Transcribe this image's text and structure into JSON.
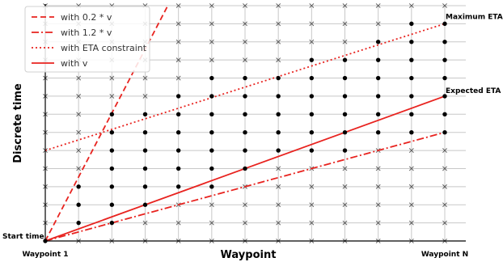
{
  "chart_data": {
    "type": "scatter",
    "title": "",
    "xlabel": "Waypoint",
    "ylabel": "Discrete time",
    "x_tick_labels": [
      {
        "x": 0,
        "label": "Waypoint 1"
      },
      {
        "x": 12,
        "label": "Waypoint N"
      }
    ],
    "xlim": [
      0,
      12
    ],
    "ylim": [
      0,
      13
    ],
    "grid": true,
    "grid_x": [
      0,
      1,
      2,
      3,
      4,
      5,
      6,
      7,
      8,
      9,
      10,
      11,
      12
    ],
    "grid_y": [
      0,
      1,
      2,
      3,
      4,
      5,
      6,
      7,
      8,
      9,
      10,
      11,
      12,
      13
    ],
    "legend": {
      "placement": "top-left",
      "entries": [
        {
          "label": "with 0.2 * v",
          "style": "dashed",
          "color": "#e8231f"
        },
        {
          "label": "with 1.2 * v",
          "style": "dashdot",
          "color": "#e8231f"
        },
        {
          "label": "with ETA constraint",
          "style": "dotted",
          "color": "#e8231f"
        },
        {
          "label": "with v",
          "style": "solid",
          "color": "#e8231f"
        }
      ]
    },
    "series": [
      {
        "name": "with 0.2 * v",
        "x": [
          0,
          3.68
        ],
        "y": [
          0,
          13
        ]
      },
      {
        "name": "with 1.2 * v",
        "x": [
          0,
          12
        ],
        "y": [
          0,
          6
        ]
      },
      {
        "name": "with ETA constraint",
        "x": [
          0,
          12
        ],
        "y": [
          5,
          12
        ]
      },
      {
        "name": "with v",
        "x": [
          0,
          12
        ],
        "y": [
          0,
          8
        ]
      }
    ],
    "grid_nodes": {
      "columns": [
        0,
        1,
        2,
        3,
        4,
        5,
        6,
        7,
        8,
        9,
        10,
        11,
        12
      ],
      "rows": [
        0,
        1,
        2,
        3,
        4,
        5,
        6,
        7,
        8,
        9,
        10,
        11,
        12,
        13
      ],
      "feasible": [
        {
          "x": 0,
          "y": [
            0
          ]
        },
        {
          "x": 1,
          "y": [
            1,
            2,
            3
          ]
        },
        {
          "x": 2,
          "y": [
            1,
            2,
            3,
            4,
            5,
            6,
            7
          ]
        },
        {
          "x": 3,
          "y": [
            2,
            3,
            4,
            5,
            6,
            7
          ]
        },
        {
          "x": 4,
          "y": [
            3,
            4,
            5,
            6,
            7,
            8
          ]
        },
        {
          "x": 5,
          "y": [
            3,
            4,
            5,
            6,
            7,
            8,
            9
          ]
        },
        {
          "x": 6,
          "y": [
            4,
            5,
            6,
            7,
            8,
            9
          ]
        },
        {
          "x": 7,
          "y": [
            5,
            6,
            7,
            8,
            9
          ]
        },
        {
          "x": 8,
          "y": [
            5,
            6,
            7,
            8,
            9,
            10
          ]
        },
        {
          "x": 9,
          "y": [
            5,
            6,
            7,
            8,
            9,
            10
          ]
        },
        {
          "x": 10,
          "y": [
            6,
            7,
            8,
            9,
            10,
            11
          ]
        },
        {
          "x": 11,
          "y": [
            6,
            7,
            8,
            9,
            10,
            11,
            12
          ]
        },
        {
          "x": 12,
          "y": [
            6,
            7,
            8,
            9,
            10,
            11,
            12
          ]
        }
      ]
    },
    "annotations": [
      {
        "text": "Start time",
        "x": 0,
        "y": 0
      },
      {
        "text": "Maximum ETA",
        "x": 12,
        "y": 12
      },
      {
        "text": "Expected ETA",
        "x": 12,
        "y": 8
      }
    ],
    "colors": {
      "lines": "#e8231f",
      "dots": "#000000",
      "crosses": "#555555",
      "grid": "#c8c8c8"
    }
  }
}
